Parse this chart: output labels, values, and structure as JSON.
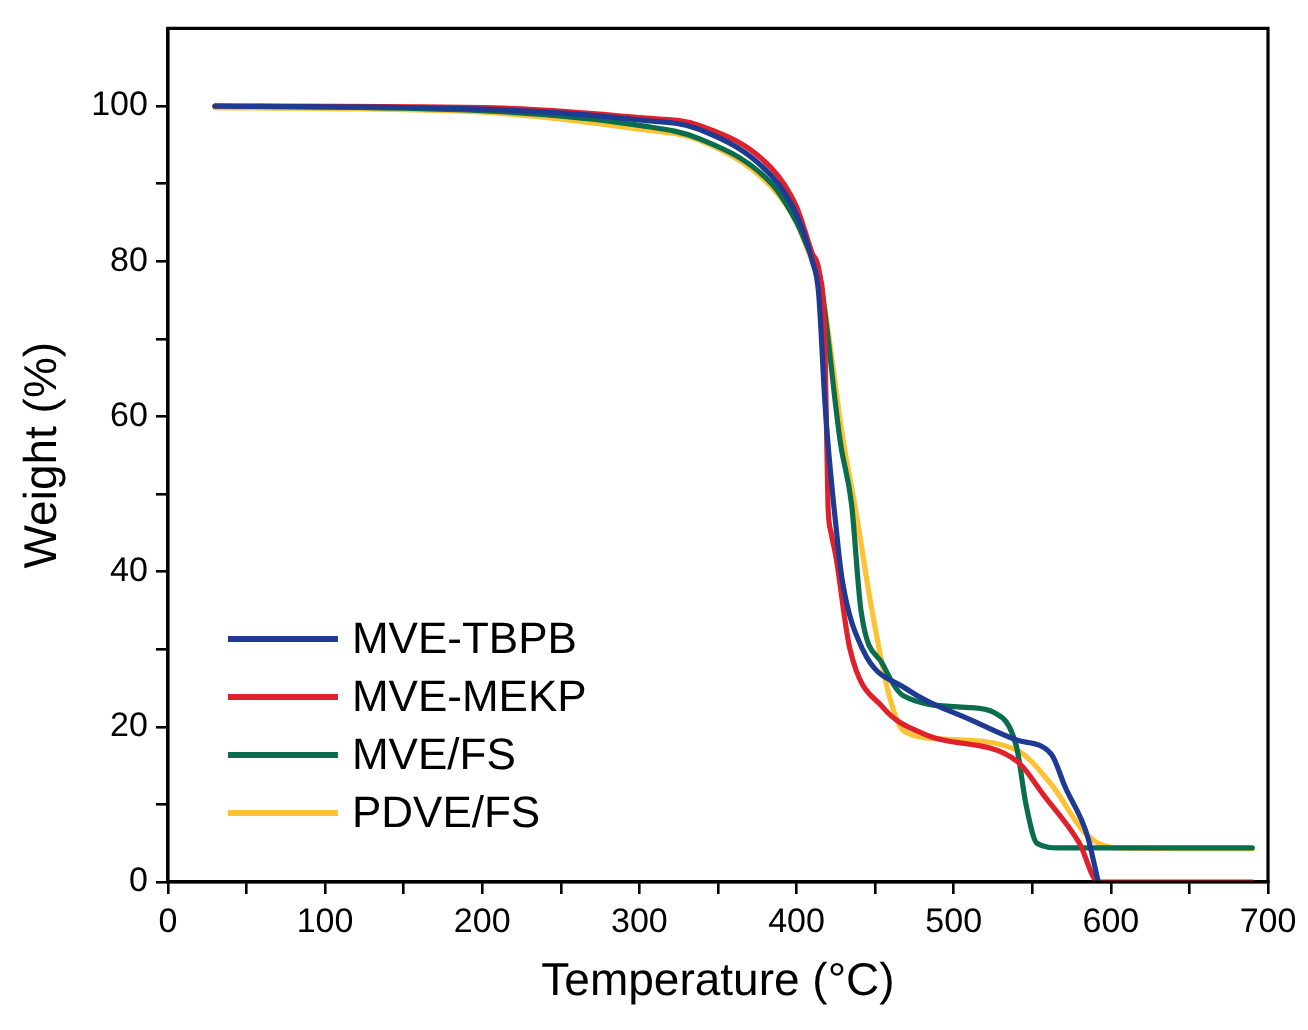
{
  "chart_data": {
    "type": "line",
    "xlabel": "Temperature (°C)",
    "ylabel": "Weight (%)",
    "xlim": [
      0,
      700
    ],
    "ylim": [
      0,
      110
    ],
    "xticks": [
      0,
      {
        "value": 50,
        "label": null
      },
      100,
      {
        "value": 150,
        "label": null
      },
      200,
      {
        "value": 250,
        "label": null
      },
      300,
      {
        "value": 350,
        "label": null
      },
      400,
      {
        "value": 450,
        "label": null
      },
      500,
      {
        "value": 550,
        "label": null
      },
      600,
      {
        "value": 650,
        "label": null
      },
      700
    ],
    "yticks": [
      0,
      {
        "value": 10,
        "label": null
      },
      20,
      {
        "value": 30,
        "label": null
      },
      40,
      {
        "value": 50,
        "label": null
      },
      60,
      {
        "value": 70,
        "label": null
      },
      80,
      {
        "value": 90,
        "label": null
      },
      100
    ],
    "grid": false,
    "legend": "bottom left",
    "marker": "none",
    "line_style": "solid",
    "series": [
      {
        "name": "MVE-TBPB",
        "color": "#1f3a93",
        "x": [
          30,
          200,
          300,
          338,
          384,
          400,
          410,
          414,
          418,
          420,
          425,
          429,
          442,
          469,
          513,
          540,
          562,
          571,
          585,
          592
        ],
        "values": [
          100,
          99.6,
          98.2,
          97,
          91,
          86,
          80,
          76,
          62,
          56.5,
          46,
          39,
          30,
          25,
          20.7,
          18.3,
          16.5,
          12.2,
          6,
          0
        ]
      },
      {
        "name": "MVE-MEKP",
        "color": "#e0202a",
        "x": [
          30,
          200,
          300,
          338,
          384,
          400,
          410,
          414,
          418,
          420,
          422,
          425,
          434,
          455,
          482,
          540,
          558,
          580,
          592,
          690
        ],
        "values": [
          100,
          99.8,
          98.5,
          97.5,
          92,
          87,
          81,
          79,
          70,
          48.7,
          45,
          42,
          30,
          22.5,
          19,
          15.6,
          11,
          5,
          0,
          0
        ]
      },
      {
        "name": "MVE/FS",
        "color": "#0a6e4e",
        "x": [
          30,
          200,
          300,
          338,
          384,
          400,
          410,
          414,
          428,
          435,
          441,
          455,
          468,
          508,
          526,
          540,
          546,
          553,
          567,
          690
        ],
        "values": [
          100,
          99.4,
          97.5,
          95.8,
          90,
          85,
          80.5,
          79,
          56.5,
          48.7,
          35,
          28,
          24,
          22.5,
          21.8,
          17.4,
          10,
          5,
          4.4,
          4.4
        ]
      },
      {
        "name": "PDVE/FS",
        "color": "#ffc233",
        "x": [
          30,
          200,
          300,
          338,
          384,
          400,
          410,
          414,
          430,
          437,
          448,
          459,
          468,
          495,
          540,
          562,
          585,
          603,
          690
        ],
        "values": [
          99.8,
          99.2,
          97,
          95.6,
          89.6,
          85,
          80,
          78.5,
          56.5,
          48.7,
          35,
          24,
          19.5,
          18.4,
          17,
          12.6,
          6,
          4.4,
          4.3
        ]
      }
    ]
  }
}
